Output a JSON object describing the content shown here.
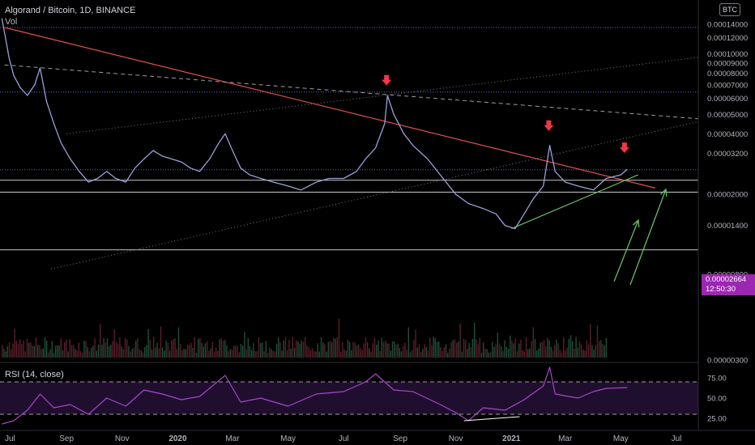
{
  "header": {
    "title": "Algorand / Bitcoin, 1D, BINANCE",
    "volume_label": "Vol",
    "currency_badge": "BTC"
  },
  "rsi": {
    "title": "RSI (14, close)"
  },
  "price_tag": {
    "price": "0.00002664",
    "countdown": "12:50:30"
  },
  "colors": {
    "background": "#000000",
    "candles": "#9aa0d8",
    "down_trendline": "#e05050",
    "up_trendline": "#66bb6a",
    "arrow_up": "#66bb6a",
    "marker_down": "#f23645",
    "rsi_line": "#a846c8",
    "rsi_band": "#3a1a55",
    "price_tag": "#9c27b0"
  },
  "chart_data": [
    {
      "type": "line",
      "title": "Algorand / Bitcoin, 1D, BINANCE",
      "x_axis_ticks": [
        "Jul",
        "Sep",
        "Nov",
        "2020",
        "Mar",
        "May",
        "Jul",
        "Sep",
        "Nov",
        "2021",
        "Mar",
        "May",
        "Jul"
      ],
      "y_axis_ticks": [
        "0.00014000",
        "0.00012000",
        "0.00010000",
        "0.00009000",
        "0.00008000",
        "0.00007000",
        "0.00006000",
        "0.00005000",
        "0.00004000",
        "0.00003200",
        "0.00002000",
        "0.00001400",
        "0.00000800",
        "0.00000300"
      ],
      "y_scale": "log",
      "series": [
        {
          "values": [
            [
              "2019-06-22",
              0.00015
            ],
            [
              "2019-06-26",
              0.00012
            ],
            [
              "2019-06-30",
              9.5e-05
            ],
            [
              "2019-07-05",
              7.8e-05
            ],
            [
              "2019-07-12",
              6.8e-05
            ],
            [
              "2019-07-20",
              6.2e-05
            ],
            [
              "2019-07-28",
              7e-05
            ],
            [
              "2019-08-03",
              8.5e-05
            ],
            [
              "2019-08-10",
              5.8e-05
            ],
            [
              "2019-08-18",
              4.5e-05
            ],
            [
              "2019-08-26",
              3.6e-05
            ],
            [
              "2019-09-05",
              3e-05
            ],
            [
              "2019-09-15",
              2.6e-05
            ],
            [
              "2019-09-25",
              2.3e-05
            ],
            [
              "2019-10-05",
              2.4e-05
            ],
            [
              "2019-10-15",
              2.6e-05
            ],
            [
              "2019-10-25",
              2.4e-05
            ],
            [
              "2019-11-05",
              2.3e-05
            ],
            [
              "2019-11-15",
              2.7e-05
            ],
            [
              "2019-11-25",
              3e-05
            ],
            [
              "2019-12-05",
              3.3e-05
            ],
            [
              "2019-12-15",
              3.1e-05
            ],
            [
              "2019-12-25",
              3e-05
            ],
            [
              "2020-01-05",
              2.9e-05
            ],
            [
              "2020-01-15",
              2.7e-05
            ],
            [
              "2020-01-25",
              2.6e-05
            ],
            [
              "2020-02-05",
              3e-05
            ],
            [
              "2020-02-15",
              3.6e-05
            ],
            [
              "2020-02-22",
              4e-05
            ],
            [
              "2020-03-01",
              3.3e-05
            ],
            [
              "2020-03-10",
              2.7e-05
            ],
            [
              "2020-03-20",
              2.5e-05
            ],
            [
              "2020-04-01",
              2.4e-05
            ],
            [
              "2020-04-15",
              2.3e-05
            ],
            [
              "2020-05-01",
              2.2e-05
            ],
            [
              "2020-05-15",
              2.1e-05
            ],
            [
              "2020-06-01",
              2.3e-05
            ],
            [
              "2020-06-15",
              2.4e-05
            ],
            [
              "2020-07-01",
              2.4e-05
            ],
            [
              "2020-07-15",
              2.6e-05
            ],
            [
              "2020-07-25",
              3e-05
            ],
            [
              "2020-08-05",
              3.4e-05
            ],
            [
              "2020-08-15",
              4.5e-05
            ],
            [
              "2020-08-18",
              6.2e-05
            ],
            [
              "2020-08-25",
              5e-05
            ],
            [
              "2020-09-05",
              4e-05
            ],
            [
              "2020-09-15",
              3.5e-05
            ],
            [
              "2020-10-01",
              3e-05
            ],
            [
              "2020-10-15",
              2.5e-05
            ],
            [
              "2020-11-01",
              2e-05
            ],
            [
              "2020-11-15",
              1.8e-05
            ],
            [
              "2020-12-01",
              1.7e-05
            ],
            [
              "2020-12-15",
              1.6e-05
            ],
            [
              "2020-12-25",
              1.4e-05
            ],
            [
              "2021-01-05",
              1.35e-05
            ],
            [
              "2021-01-15",
              1.6e-05
            ],
            [
              "2021-01-25",
              1.9e-05
            ],
            [
              "2021-02-05",
              2.2e-05
            ],
            [
              "2021-02-12",
              3.5e-05
            ],
            [
              "2021-02-18",
              2.6e-05
            ],
            [
              "2021-03-01",
              2.3e-05
            ],
            [
              "2021-03-15",
              2.2e-05
            ],
            [
              "2021-04-01",
              2.1e-05
            ],
            [
              "2021-04-15",
              2.4e-05
            ],
            [
              "2021-05-01",
              2.5e-05
            ],
            [
              "2021-05-08",
              2.664e-05
            ]
          ]
        }
      ]
    },
    {
      "type": "line",
      "title": "RSI (14, close)",
      "y_axis_ticks": [
        "75.00",
        "50.00",
        "25.00"
      ],
      "ylim": [
        10,
        90
      ],
      "levels": [
        70,
        30
      ],
      "series": [
        {
          "values": [
            [
              "2019-06-22",
              18
            ],
            [
              "2019-07-05",
              22
            ],
            [
              "2019-07-20",
              35
            ],
            [
              "2019-08-03",
              55
            ],
            [
              "2019-08-18",
              38
            ],
            [
              "2019-09-05",
              42
            ],
            [
              "2019-09-25",
              30
            ],
            [
              "2019-10-15",
              50
            ],
            [
              "2019-11-05",
              40
            ],
            [
              "2019-11-25",
              60
            ],
            [
              "2019-12-15",
              55
            ],
            [
              "2020-01-05",
              48
            ],
            [
              "2020-01-25",
              52
            ],
            [
              "2020-02-22",
              78
            ],
            [
              "2020-03-10",
              45
            ],
            [
              "2020-04-01",
              50
            ],
            [
              "2020-05-01",
              40
            ],
            [
              "2020-06-01",
              55
            ],
            [
              "2020-07-01",
              58
            ],
            [
              "2020-07-25",
              70
            ],
            [
              "2020-08-05",
              80
            ],
            [
              "2020-08-25",
              60
            ],
            [
              "2020-09-15",
              58
            ],
            [
              "2020-10-15",
              42
            ],
            [
              "2020-11-01",
              32
            ],
            [
              "2020-11-15",
              22
            ],
            [
              "2020-12-01",
              38
            ],
            [
              "2020-12-25",
              35
            ],
            [
              "2021-01-15",
              48
            ],
            [
              "2021-02-05",
              65
            ],
            [
              "2021-02-12",
              88
            ],
            [
              "2021-02-18",
              55
            ],
            [
              "2021-03-15",
              50
            ],
            [
              "2021-04-01",
              58
            ],
            [
              "2021-04-15",
              62
            ],
            [
              "2021-05-08",
              63
            ]
          ]
        }
      ]
    }
  ]
}
